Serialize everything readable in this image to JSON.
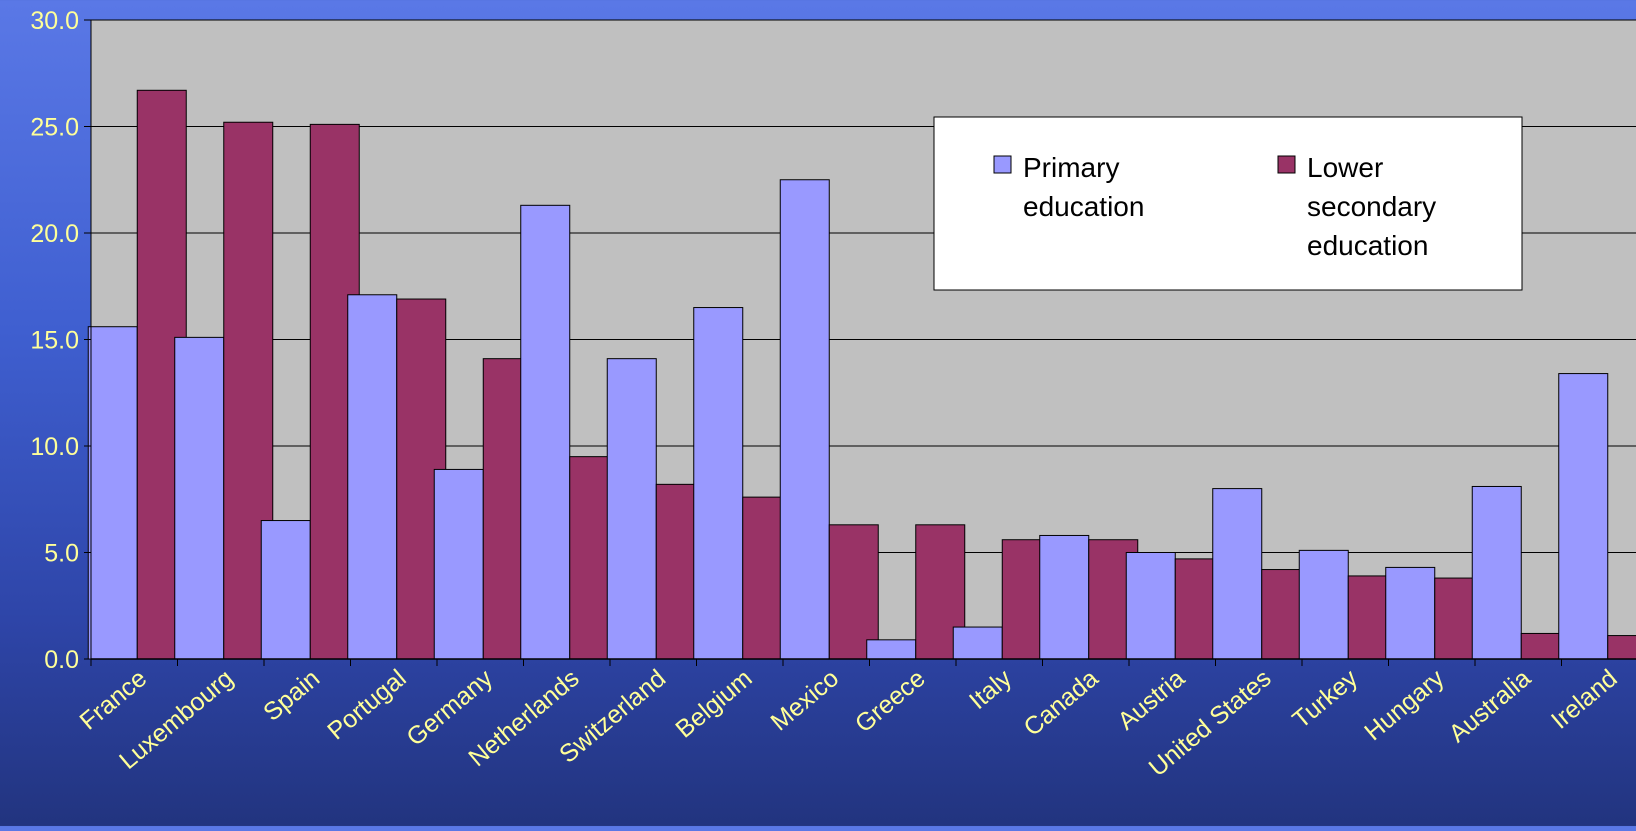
{
  "chart_data": {
    "type": "bar",
    "categories": [
      "France",
      "Luxembourg",
      "Spain",
      "Portugal",
      "Germany",
      "Netherlands",
      "Switzerland",
      "Belgium",
      "Mexico",
      "Greece",
      "Italy",
      "Canada",
      "Austria",
      "United States",
      "Turkey",
      "Hungary",
      "Australia",
      "Ireland"
    ],
    "series": [
      {
        "name": "Primary education",
        "color": "#9999ff",
        "values": [
          15.6,
          15.1,
          6.5,
          17.1,
          8.9,
          21.3,
          14.1,
          16.5,
          22.5,
          0.9,
          1.5,
          5.8,
          5.0,
          8.0,
          5.1,
          4.3,
          8.1,
          13.4
        ]
      },
      {
        "name": "Lower secondary education",
        "color": "#993366",
        "values": [
          26.7,
          25.2,
          25.1,
          16.9,
          14.1,
          9.5,
          8.2,
          7.6,
          6.3,
          6.3,
          5.6,
          5.6,
          4.7,
          4.2,
          3.9,
          3.8,
          1.2,
          1.1
        ]
      }
    ],
    "legend": {
      "primary_line1": "Primary",
      "primary_line2": "education",
      "secondary_line1": "Lower",
      "secondary_line2": "secondary",
      "secondary_line3": "education"
    },
    "ylim": [
      0,
      30
    ],
    "yticks": [
      "0.0",
      "5.0",
      "10.0",
      "15.0",
      "20.0",
      "25.0",
      "30.0"
    ],
    "grid": true,
    "legend_placement": "top-right",
    "title": "",
    "xlabel": "",
    "ylabel": "",
    "colors": {
      "plot_bg": "#c0c0c0",
      "tick_text": "#ffff99",
      "gridline": "#000000"
    }
  }
}
